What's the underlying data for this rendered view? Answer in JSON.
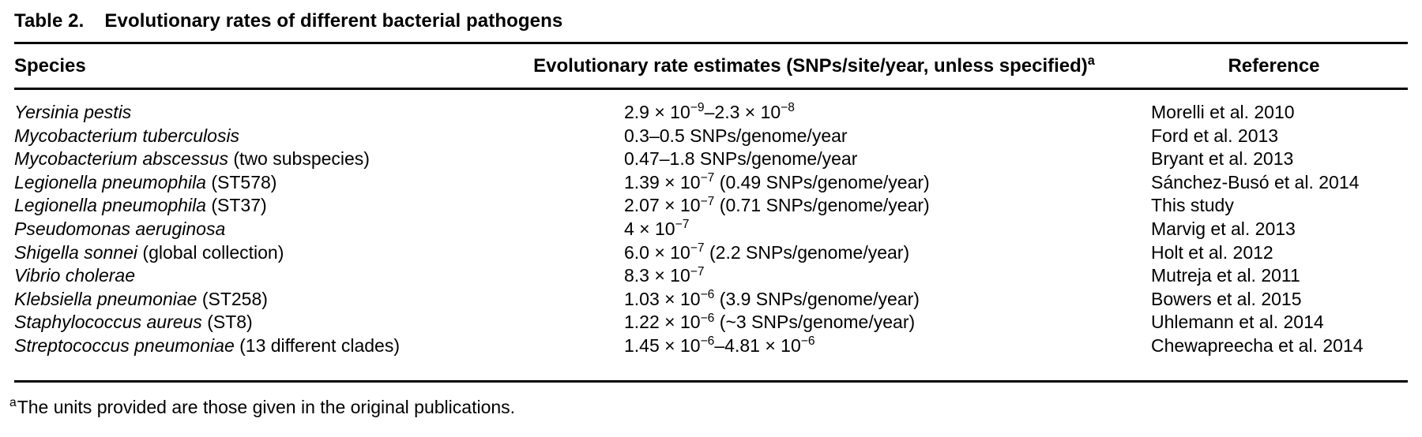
{
  "caption": {
    "label": "Table 2.",
    "title": "Evolutionary rates of different bacterial pathogens"
  },
  "columns": {
    "species": "Species",
    "rate": "Evolutionary rate estimates (SNPs/site/year, unless specified)",
    "rate_sup": "a",
    "reference": "Reference"
  },
  "rows": [
    {
      "species_italic": "Yersinia pestis",
      "species_plain": "",
      "rate": [
        {
          "t": "2.9 × 10"
        },
        {
          "sup": "−9"
        },
        {
          "t": "–2.3 × 10"
        },
        {
          "sup": "−8"
        }
      ],
      "reference": "Morelli et al. 2010"
    },
    {
      "species_italic": "Mycobacterium tuberculosis",
      "species_plain": "",
      "rate": [
        {
          "t": "0.3–0.5 SNPs/genome/year"
        }
      ],
      "reference": "Ford et al. 2013"
    },
    {
      "species_italic": "Mycobacterium abscessus",
      "species_plain": "(two subspecies)",
      "rate": [
        {
          "t": "0.47–1.8 SNPs/genome/year"
        }
      ],
      "reference": "Bryant et al. 2013"
    },
    {
      "species_italic": "Legionella pneumophila",
      "species_plain": "(ST578)",
      "rate": [
        {
          "t": "1.39 × 10"
        },
        {
          "sup": "−7"
        },
        {
          "t": " (0.49 SNPs/genome/year)"
        }
      ],
      "reference": "Sánchez-Busó et al. 2014"
    },
    {
      "species_italic": "Legionella pneumophila",
      "species_plain": "(ST37)",
      "rate": [
        {
          "t": "2.07 × 10"
        },
        {
          "sup": "−7"
        },
        {
          "t": " (0.71 SNPs/genome/year)"
        }
      ],
      "reference": "This study"
    },
    {
      "species_italic": "Pseudomonas aeruginosa",
      "species_plain": "",
      "rate": [
        {
          "t": "4 × 10"
        },
        {
          "sup": "−7"
        }
      ],
      "reference": "Marvig et al. 2013"
    },
    {
      "species_italic": "Shigella sonnei",
      "species_plain": "(global collection)",
      "rate": [
        {
          "t": "6.0 × 10"
        },
        {
          "sup": "−7"
        },
        {
          "t": " (2.2 SNPs/genome/year)"
        }
      ],
      "reference": "Holt et al. 2012"
    },
    {
      "species_italic": "Vibrio cholerae",
      "species_plain": "",
      "rate": [
        {
          "t": "8.3 × 10"
        },
        {
          "sup": "−7"
        }
      ],
      "reference": "Mutreja et al. 2011"
    },
    {
      "species_italic": "Klebsiella pneumoniae",
      "species_plain": "(ST258)",
      "rate": [
        {
          "t": "1.03 × 10"
        },
        {
          "sup": "−6"
        },
        {
          "t": " (3.9 SNPs/genome/year)"
        }
      ],
      "reference": "Bowers et al. 2015"
    },
    {
      "species_italic": "Staphylococcus aureus",
      "species_plain": "(ST8)",
      "rate": [
        {
          "t": "1.22 × 10"
        },
        {
          "sup": "−6"
        },
        {
          "t": " (~3 SNPs/genome/year)"
        }
      ],
      "reference": "Uhlemann et al. 2014"
    },
    {
      "species_italic": "Streptococcus pneumoniae",
      "species_plain": "(13 different clades)",
      "rate": [
        {
          "t": "1.45 × 10"
        },
        {
          "sup": "−6"
        },
        {
          "t": "–4.81 × 10"
        },
        {
          "sup": "−6"
        }
      ],
      "reference": "Chewapreecha et al. 2014"
    }
  ],
  "footnote": {
    "sup": "a",
    "text": "The units provided are those given in the original publications."
  }
}
